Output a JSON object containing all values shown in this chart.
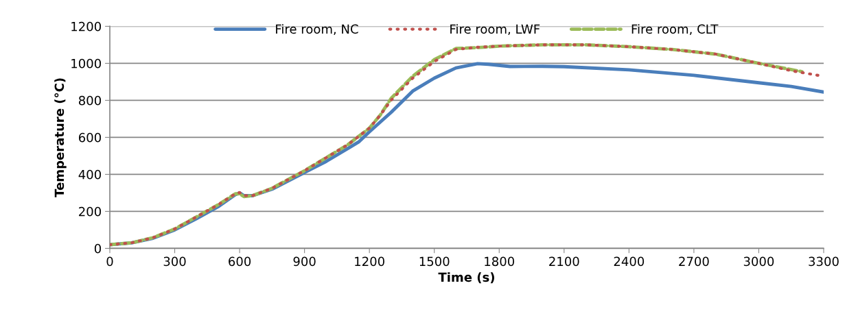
{
  "chart_data": {
    "type": "line",
    "xlabel": "Time (s)",
    "ylabel": "Temperature (°C)",
    "xlim": [
      0,
      3300
    ],
    "xticks": [
      0,
      300,
      600,
      900,
      1200,
      1500,
      1800,
      2100,
      2400,
      2700,
      3000,
      3300
    ],
    "ylim": [
      0,
      1200
    ],
    "yticks": [
      0,
      200,
      400,
      600,
      800,
      1000,
      1200
    ],
    "grid": "y",
    "legend": "top",
    "series": [
      {
        "name": "Fire room, NC",
        "color": "#4a7ebb",
        "line_style": "solid",
        "x": [
          0,
          100,
          200,
          300,
          400,
          500,
          580,
          600,
          620,
          660,
          750,
          900,
          1000,
          1100,
          1150,
          1200,
          1300,
          1400,
          1500,
          1600,
          1700,
          1750,
          1850,
          2000,
          2100,
          2400,
          2700,
          3000,
          3150,
          3300
        ],
        "values": [
          20,
          30,
          55,
          100,
          160,
          225,
          290,
          300,
          285,
          285,
          320,
          410,
          470,
          540,
          575,
          630,
          735,
          850,
          920,
          975,
          998,
          995,
          983,
          984,
          982,
          965,
          935,
          895,
          875,
          845
        ]
      },
      {
        "name": "Fire room, LWF",
        "color": "#c0504d",
        "line_style": "dotted",
        "x": [
          0,
          100,
          200,
          300,
          400,
          500,
          580,
          600,
          620,
          660,
          750,
          900,
          1000,
          1100,
          1200,
          1250,
          1300,
          1400,
          1500,
          1600,
          1700,
          1800,
          2000,
          2200,
          2400,
          2600,
          2800,
          3000,
          3150,
          3300
        ],
        "values": [
          20,
          30,
          58,
          105,
          170,
          235,
          295,
          302,
          285,
          285,
          325,
          420,
          490,
          560,
          650,
          720,
          800,
          920,
          1010,
          1075,
          1087,
          1093,
          1100,
          1100,
          1090,
          1075,
          1050,
          1000,
          960,
          930
        ]
      },
      {
        "name": "Fire room, CLT",
        "color": "#9bbb59",
        "line_style": "dashed",
        "x": [
          0,
          100,
          200,
          300,
          400,
          500,
          580,
          600,
          620,
          660,
          750,
          900,
          1000,
          1100,
          1200,
          1250,
          1300,
          1400,
          1500,
          1600,
          1700,
          1800,
          2000,
          2200,
          2400,
          2600,
          2800,
          3000,
          3200
        ],
        "values": [
          20,
          30,
          58,
          105,
          170,
          235,
          295,
          295,
          280,
          285,
          325,
          420,
          490,
          560,
          650,
          720,
          810,
          930,
          1020,
          1080,
          1085,
          1093,
          1100,
          1100,
          1090,
          1075,
          1050,
          1000,
          955
        ]
      }
    ]
  }
}
